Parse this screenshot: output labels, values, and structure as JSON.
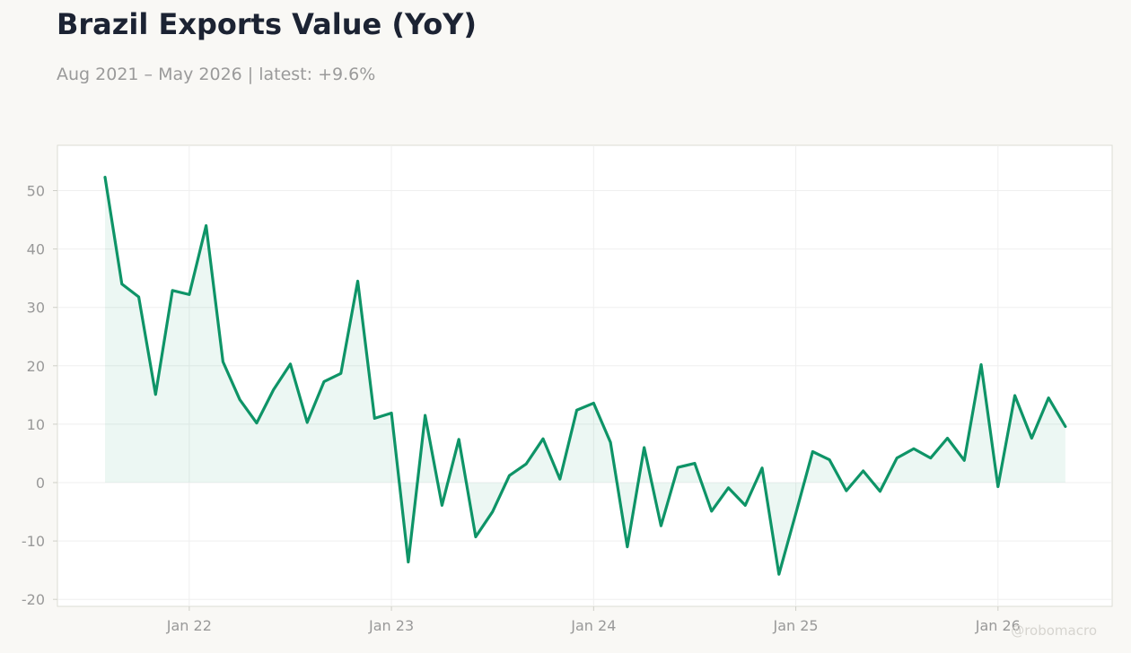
{
  "header": {
    "title": "Brazil Exports Value (YoY)",
    "subtitle": "Aug 2021 – May 2026 | latest: +9.6%"
  },
  "watermark": "@robomacro",
  "colors": {
    "line": "#0e9467",
    "fill": "#0e9467",
    "axis_text": "#999999",
    "grid": "#efefef",
    "frame": "#dcdcd4"
  },
  "chart_data": {
    "type": "area",
    "x_start": "2021-08",
    "x": [
      "2021-08",
      "2021-09",
      "2021-10",
      "2021-11",
      "2021-12",
      "2022-01",
      "2022-02",
      "2022-03",
      "2022-04",
      "2022-05",
      "2022-06",
      "2022-07",
      "2022-08",
      "2022-09",
      "2022-10",
      "2022-11",
      "2022-12",
      "2023-01",
      "2023-02",
      "2023-03",
      "2023-04",
      "2023-05",
      "2023-06",
      "2023-07",
      "2023-08",
      "2023-09",
      "2023-10",
      "2023-11",
      "2023-12",
      "2024-01",
      "2024-02",
      "2024-03",
      "2024-04",
      "2024-05",
      "2024-06",
      "2024-07",
      "2024-08",
      "2024-09",
      "2024-10",
      "2024-11",
      "2024-12",
      "2025-01",
      "2025-02",
      "2025-03",
      "2025-04",
      "2025-05",
      "2025-06",
      "2025-07",
      "2025-08",
      "2025-09",
      "2025-10",
      "2025-11",
      "2025-12",
      "2026-01",
      "2026-02",
      "2026-03",
      "2026-04",
      "2026-05"
    ],
    "values": [
      52.3,
      34.0,
      31.8,
      15.1,
      32.9,
      32.2,
      44.0,
      20.7,
      14.2,
      10.2,
      15.9,
      20.3,
      10.3,
      17.3,
      18.7,
      34.5,
      11.0,
      11.9,
      -13.6,
      11.5,
      -3.9,
      7.4,
      -9.3,
      -5.0,
      1.2,
      3.2,
      7.5,
      0.6,
      12.4,
      13.6,
      6.9,
      -11.0,
      6.0,
      -7.4,
      2.6,
      3.3,
      -4.9,
      -0.9,
      -3.9,
      2.5,
      -15.7,
      -5.3,
      5.3,
      3.9,
      -1.4,
      2.0,
      -1.5,
      4.2,
      5.8,
      4.2,
      7.6,
      3.8,
      20.2,
      -0.7,
      14.9,
      7.6,
      14.5,
      9.6
    ],
    "x_ticks": [
      "Jan 22",
      "Jan 23",
      "Jan 24",
      "Jan 25",
      "Jan 26"
    ],
    "y_ticks": [
      50,
      40,
      30,
      20,
      10,
      0,
      -10,
      -20
    ],
    "ylim": [
      -21,
      58
    ],
    "grid": true,
    "baseline": 0
  }
}
